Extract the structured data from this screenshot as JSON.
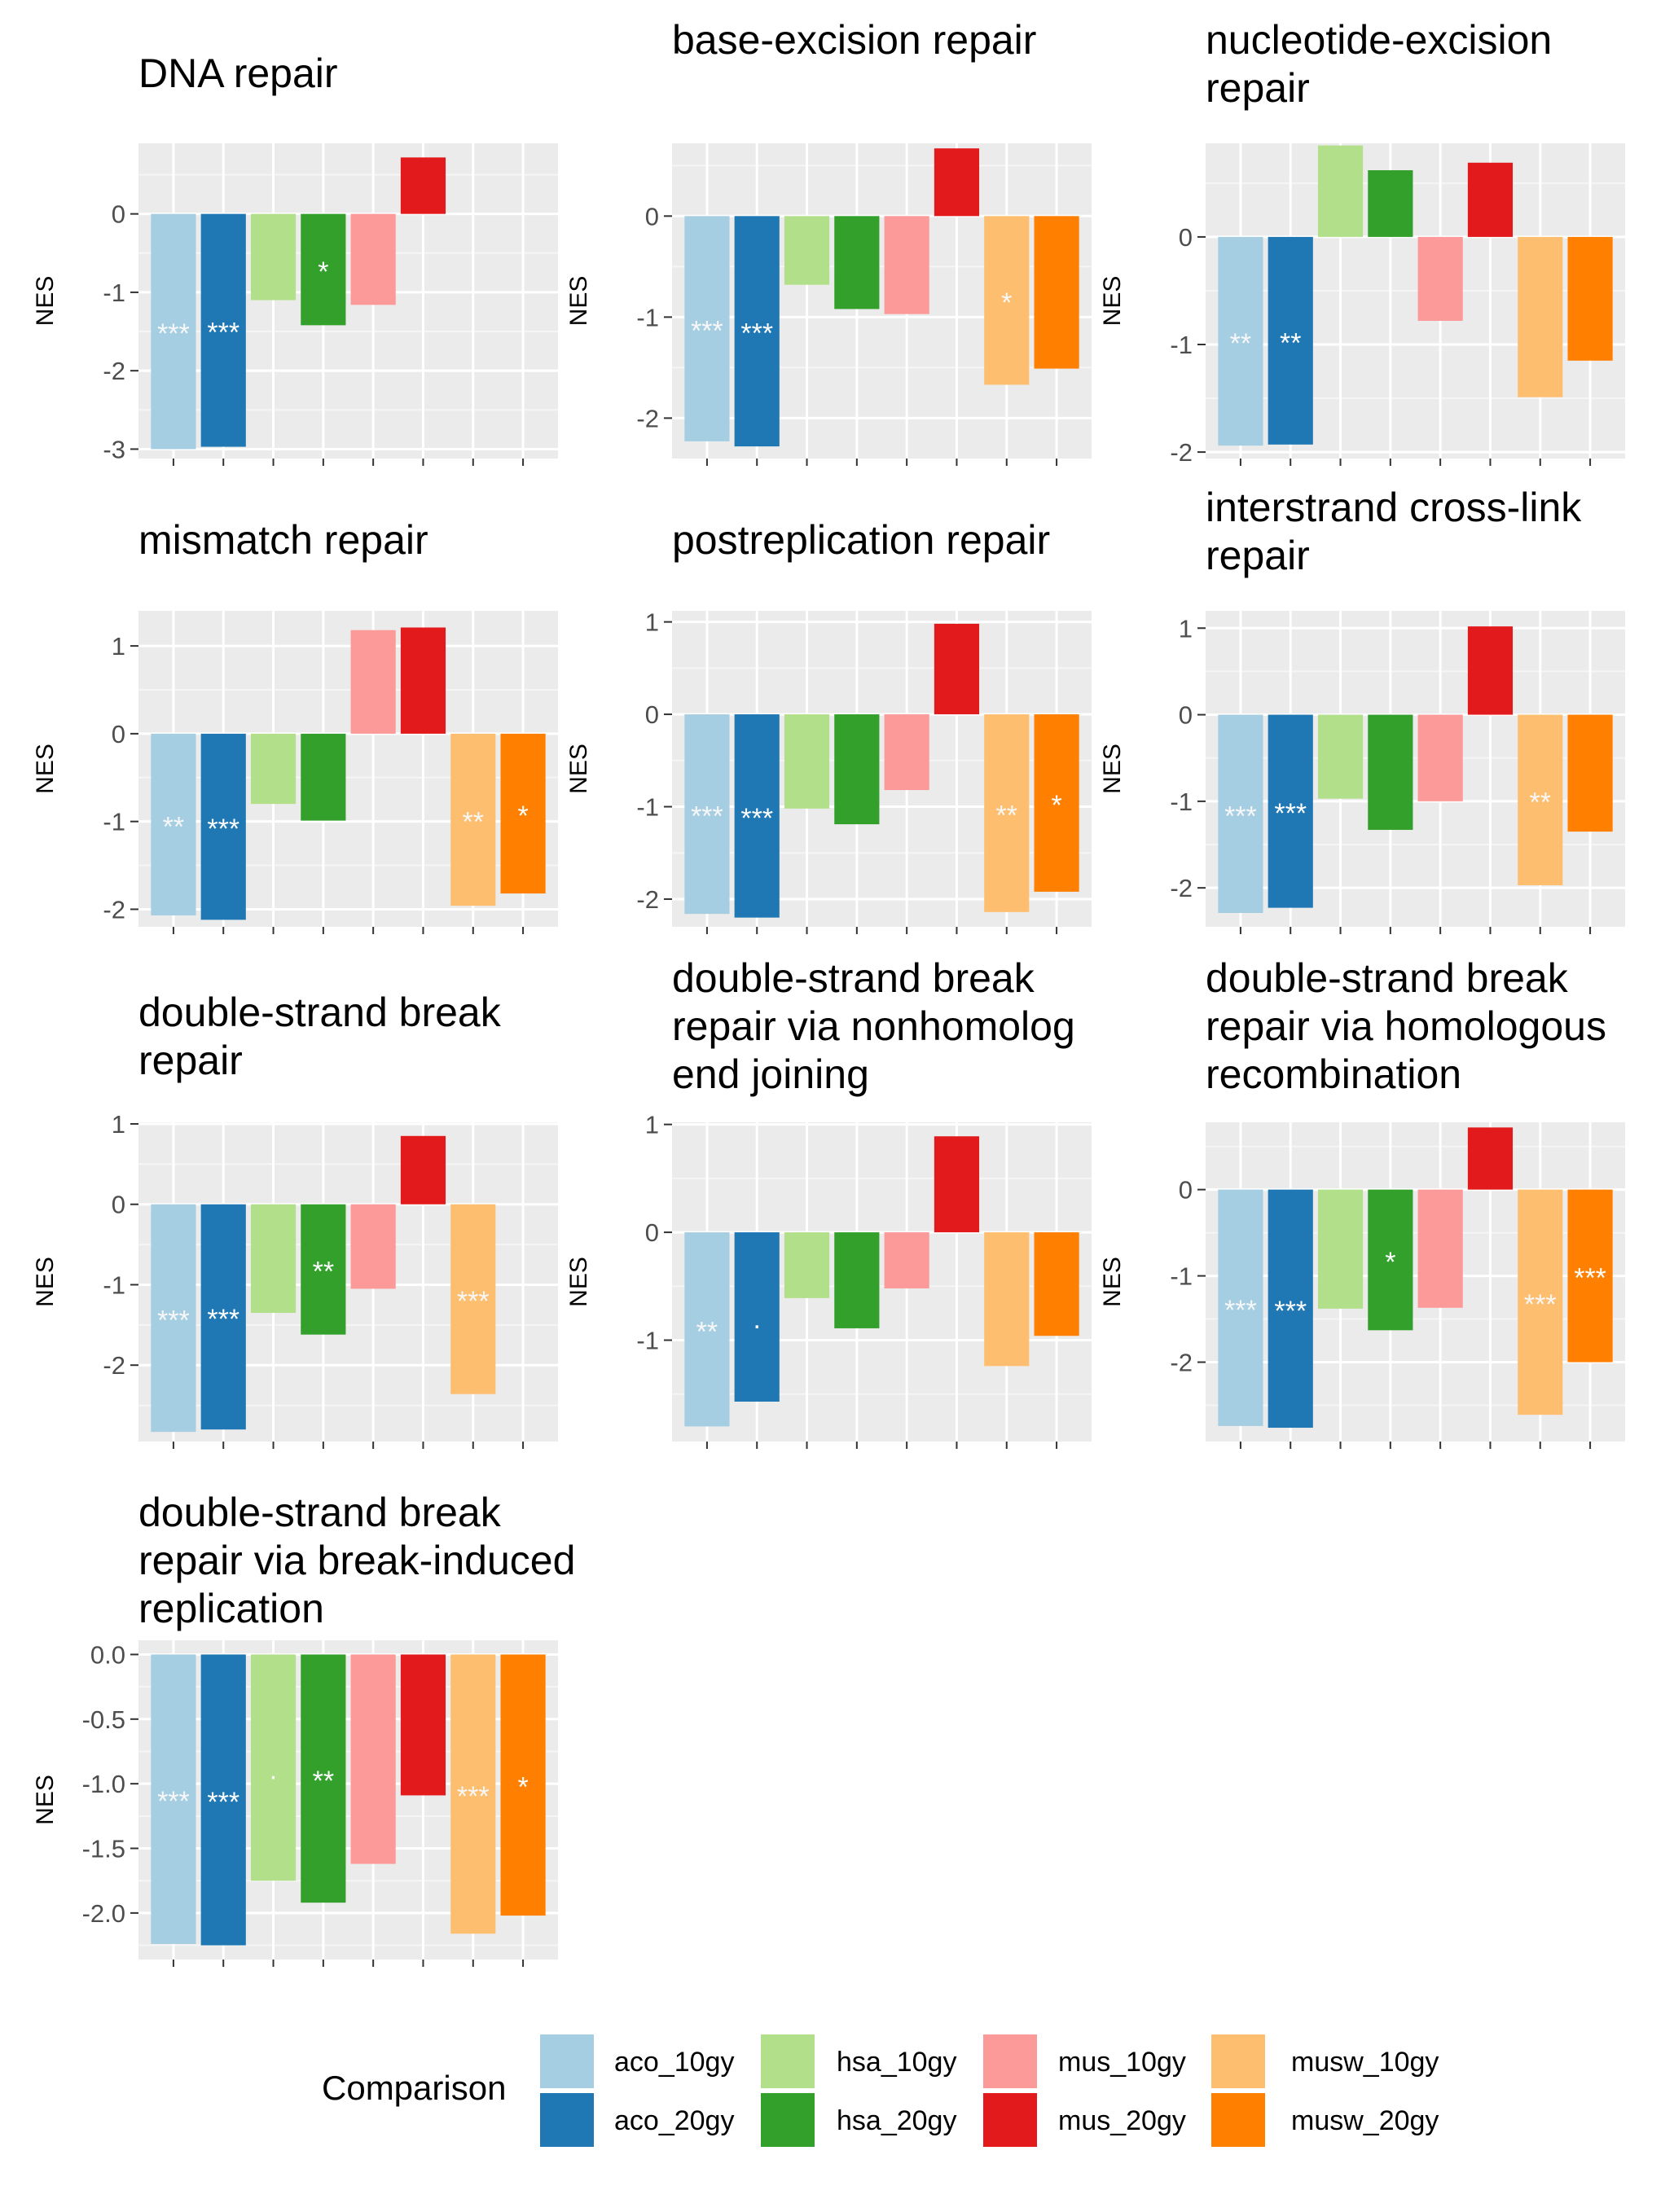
{
  "chart_data": {
    "type": "bar",
    "categories": [
      "aco_10gy",
      "aco_20gy",
      "hsa_10gy",
      "hsa_20gy",
      "mus_10gy",
      "mus_20gy",
      "musw_10gy",
      "musw_20gy"
    ],
    "colors": [
      "#A6CEE3",
      "#1F78B4",
      "#B2DF8A",
      "#33A02C",
      "#FB9A99",
      "#E31A1C",
      "#FDBF6F",
      "#FF7F00"
    ],
    "ylabel": "NES",
    "legend": {
      "title": "Comparison",
      "placement": "bottom",
      "entries": [
        "aco_10gy",
        "aco_20gy",
        "hsa_10gy",
        "hsa_20gy",
        "mus_10gy",
        "mus_20gy",
        "musw_10gy",
        "musw_20gy"
      ]
    },
    "grid": true,
    "panels": [
      {
        "title_lines": [
          "DNA repair"
        ],
        "ylim": [
          -3.12,
          0.9
        ],
        "yticks": [
          0,
          -1,
          -2,
          -3
        ],
        "tick_labels": [
          "0",
          "-1",
          "-2",
          "-3"
        ],
        "values": [
          -3.0,
          -2.97,
          -1.1,
          -1.42,
          -1.16,
          0.72,
          null,
          null
        ],
        "sig": [
          "***",
          "***",
          "",
          "*",
          "",
          "",
          "",
          ""
        ]
      },
      {
        "title_lines": [
          "base-excision repair"
        ],
        "ylim": [
          -2.4,
          0.72
        ],
        "yticks": [
          0,
          -1,
          -2
        ],
        "tick_labels": [
          "0",
          "-1",
          "-2"
        ],
        "values": [
          -2.23,
          -2.28,
          -0.68,
          -0.92,
          -0.97,
          0.67,
          -1.67,
          -1.51
        ],
        "sig": [
          "***",
          "***",
          "",
          "",
          "",
          "",
          "*",
          ""
        ]
      },
      {
        "title_lines": [
          "nucleotide-excision",
          "repair"
        ],
        "ylim": [
          -2.06,
          0.87
        ],
        "yticks": [
          0,
          -1,
          -2
        ],
        "tick_labels": [
          "0",
          "-1",
          "-2"
        ],
        "values": [
          -1.94,
          -1.93,
          0.85,
          0.62,
          -0.78,
          0.69,
          -1.49,
          -1.15
        ],
        "sig": [
          "**",
          "**",
          "",
          "",
          "",
          "",
          "",
          ""
        ]
      },
      {
        "title_lines": [
          "mismatch repair"
        ],
        "ylim": [
          -2.2,
          1.4
        ],
        "yticks": [
          1,
          0,
          -1,
          -2
        ],
        "tick_labels": [
          "1",
          "0",
          "-1",
          "-2"
        ],
        "values": [
          -2.07,
          -2.12,
          -0.8,
          -0.99,
          1.18,
          1.21,
          -1.96,
          -1.82
        ],
        "sig": [
          "**",
          "***",
          "",
          "",
          "",
          "",
          "**",
          "*"
        ]
      },
      {
        "title_lines": [
          "postreplication repair"
        ],
        "ylim": [
          -2.3,
          1.12
        ],
        "yticks": [
          1,
          0,
          -1,
          -2
        ],
        "tick_labels": [
          "1",
          "0",
          "-1",
          "-2"
        ],
        "values": [
          -2.16,
          -2.2,
          -1.02,
          -1.19,
          -0.82,
          0.98,
          -2.14,
          -1.92
        ],
        "sig": [
          "***",
          "***",
          "",
          "",
          "",
          "",
          "**",
          "*"
        ]
      },
      {
        "title_lines": [
          "interstrand cross-link",
          "repair"
        ],
        "ylim": [
          -2.45,
          1.2
        ],
        "yticks": [
          1,
          0,
          -1,
          -2
        ],
        "tick_labels": [
          "1",
          "0",
          "-1",
          "-2"
        ],
        "values": [
          -2.29,
          -2.23,
          -0.97,
          -1.33,
          -1.0,
          1.02,
          -1.97,
          -1.35
        ],
        "sig": [
          "***",
          "***",
          "",
          "",
          "",
          "",
          "**",
          ""
        ]
      },
      {
        "title_lines": [
          "double-strand break",
          "repair"
        ],
        "ylim": [
          -2.95,
          1.02
        ],
        "yticks": [
          1,
          0,
          -1,
          -2
        ],
        "tick_labels": [
          "1",
          "0",
          "-1",
          "-2"
        ],
        "values": [
          -2.83,
          -2.8,
          -1.35,
          -1.62,
          -1.05,
          0.85,
          -2.36,
          null
        ],
        "sig": [
          "***",
          "***",
          "",
          "**",
          "",
          "",
          "***",
          ""
        ]
      },
      {
        "title_lines": [
          "double-strand break",
          "repair via nonhomolog",
          "end joining"
        ],
        "ylim": [
          -1.94,
          1.02
        ],
        "yticks": [
          1,
          0,
          -1
        ],
        "tick_labels": [
          "1",
          "0",
          "-1"
        ],
        "values": [
          -1.8,
          -1.57,
          -0.61,
          -0.89,
          -0.52,
          0.89,
          -1.24,
          -0.96
        ],
        "sig": [
          "**",
          ".",
          "",
          "",
          "",
          "",
          "",
          ""
        ]
      },
      {
        "title_lines": [
          "double-strand break",
          "repair via homologous",
          "recombination"
        ],
        "ylim": [
          -2.92,
          0.78
        ],
        "yticks": [
          0,
          -1,
          -2
        ],
        "tick_labels": [
          "0",
          "-1",
          "-2"
        ],
        "values": [
          -2.74,
          -2.76,
          -1.38,
          -1.63,
          -1.37,
          0.72,
          -2.61,
          -2.0
        ],
        "sig": [
          "***",
          "***",
          "",
          "*",
          "",
          "",
          "***",
          "***"
        ]
      },
      {
        "title_lines": [
          "double-strand break",
          "repair via break-induced",
          "replication"
        ],
        "ylim": [
          -2.36,
          0.11
        ],
        "yticks": [
          0,
          -0.5,
          -1,
          -1.5,
          -2
        ],
        "tick_labels": [
          "0.0",
          "-0.5",
          "-1.0",
          "-1.5",
          "-2.0"
        ],
        "values": [
          -2.24,
          -2.25,
          -1.75,
          -1.92,
          -1.62,
          -1.09,
          -2.16,
          -2.02
        ],
        "sig": [
          "***",
          "***",
          ".",
          "**",
          "",
          "",
          "***",
          "*"
        ]
      }
    ]
  }
}
